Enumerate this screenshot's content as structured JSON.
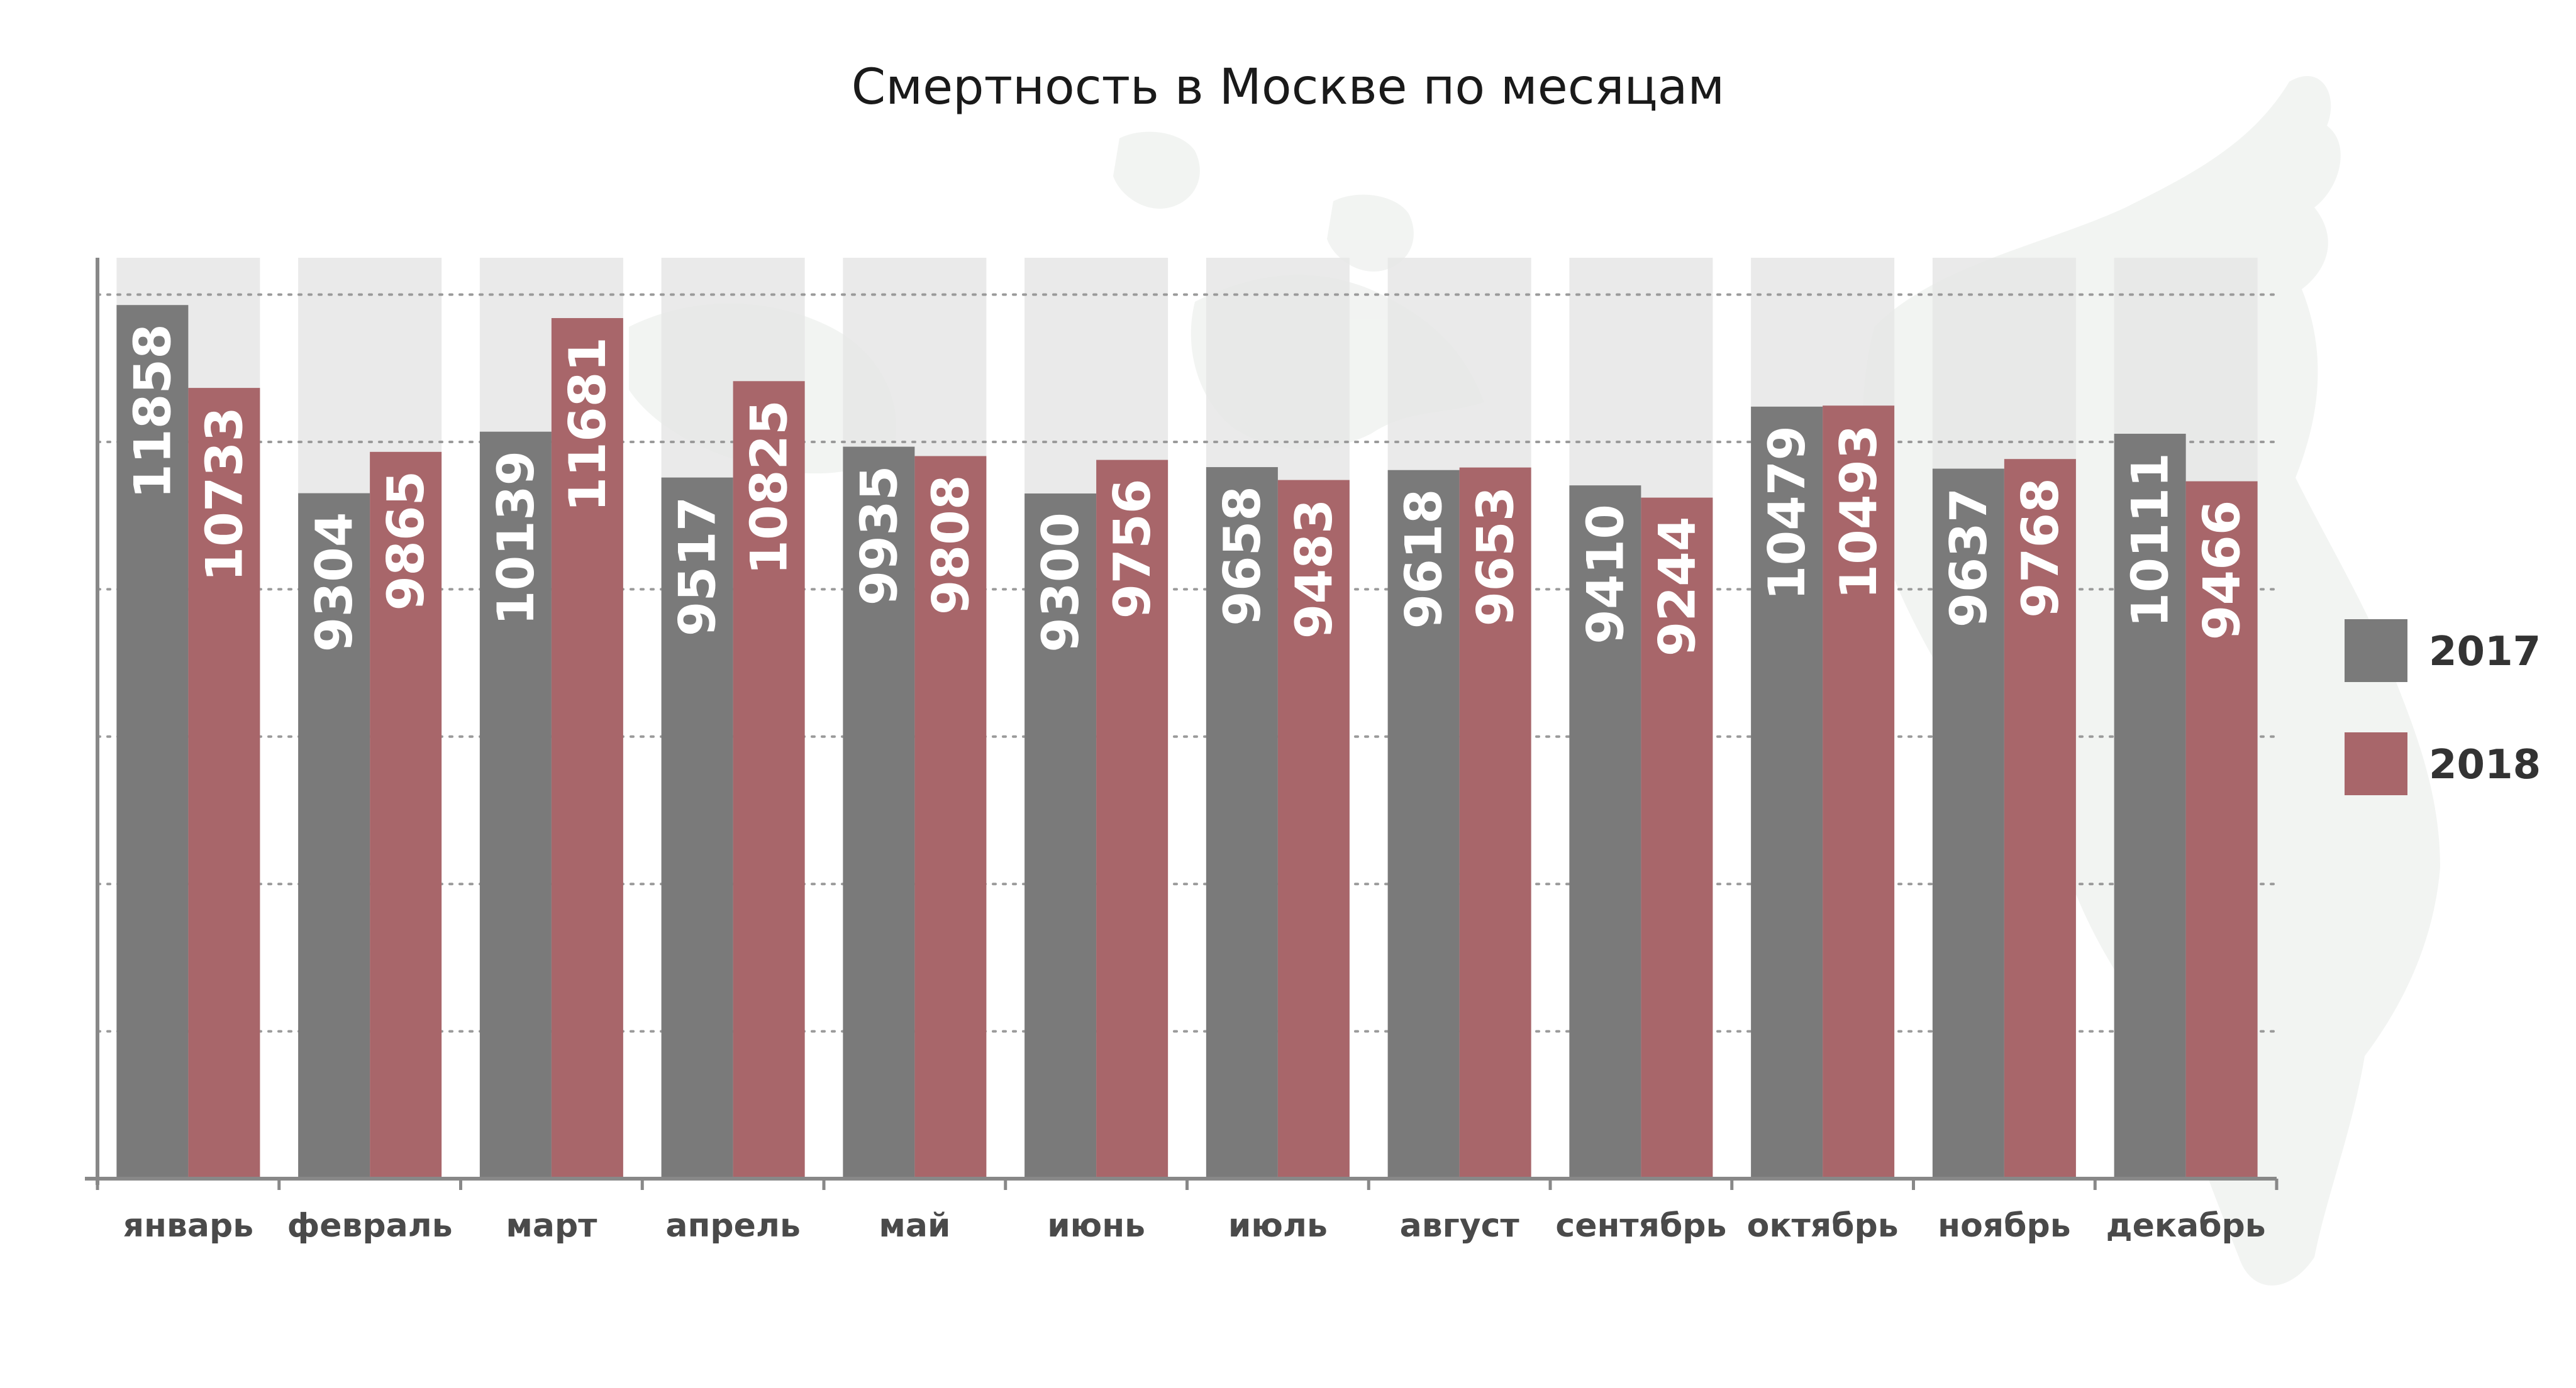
{
  "chart_data": {
    "type": "bar",
    "title": "Смертность в Москве по месяцам",
    "categories": [
      "январь",
      "февраль",
      "март",
      "апрель",
      "май",
      "июнь",
      "июль",
      "август",
      "сентябрь",
      "октябрь",
      "ноябрь",
      "декабрь"
    ],
    "series": [
      {
        "name": "2017",
        "color": "#7a7a7a",
        "values": [
          11858,
          9304,
          10139,
          9517,
          9935,
          9300,
          9658,
          9618,
          9410,
          10479,
          9637,
          10111
        ]
      },
      {
        "name": "2018",
        "color": "#a8666a",
        "values": [
          10733,
          9865,
          11681,
          10825,
          9808,
          9756,
          9483,
          9653,
          9244,
          10493,
          9768,
          9466
        ]
      }
    ],
    "ylim": [
      0,
      12500
    ],
    "grid": true,
    "legend": "right",
    "background_bands_color": "#e6e6e6",
    "axis_color": "#888888"
  }
}
